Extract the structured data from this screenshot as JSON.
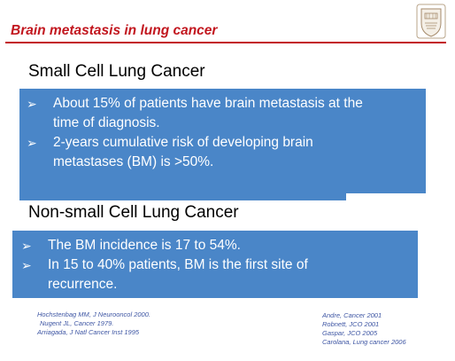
{
  "slide": {
    "title": "Brain metastasis  in lung cancer",
    "section1": {
      "heading": "Small Cell Lung Cancer",
      "bullets": [
        {
          "arrow": "➢",
          "text_line1": "About 15% of patients have brain metastasis at the",
          "text_line2": "time of diagnosis."
        },
        {
          "arrow": "➢",
          "text_line1": "2-years cumulative risk of developing brain",
          "text_line2": "metastases (BM) is >50%."
        }
      ]
    },
    "section2": {
      "heading": "Non-small Cell Lung Cancer",
      "bullets": [
        {
          "arrow": "➢",
          "text_line1": "The BM incidence is 17 to 54%."
        },
        {
          "arrow": "➢",
          "text_line1": "In 15 to 40% patients, BM is the first site of",
          "text_line2": "recurrence."
        }
      ]
    },
    "references_left": [
      "Hochstenbag MM, J Neurooncol 2000.",
      "Nugent JL, Cancer 1979.",
      "Arriagada, J Natl Cancer Inst 1995"
    ],
    "references_right": [
      "Andre, Cancer 2001",
      "Robnett, JCO 2001",
      "Gaspar, JCO 2005",
      "Carolana, Lung cancer 2006"
    ],
    "colors": {
      "title_red": "#c2171f",
      "box_blue": "#4a86c8",
      "reference_blue": "#3d55a3"
    },
    "logo_icon": "university-seal-icon"
  }
}
